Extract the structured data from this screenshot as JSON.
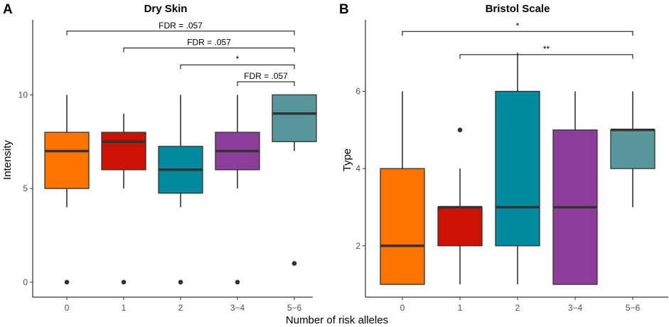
{
  "xlabel_shared": "Number of risk alleles",
  "chart_data": [
    {
      "type": "box",
      "panel": "A",
      "title": "Dry Skin",
      "xlabel": "",
      "ylabel": "Intensity",
      "ylim": [
        -0.8,
        14
      ],
      "yticks": [
        0,
        5,
        10
      ],
      "categories": [
        "0",
        "1",
        "2",
        "3−4",
        "5−6"
      ],
      "colors": [
        "#ff7300",
        "#cc1105",
        "#008a9f",
        "#8c3e9a",
        "#57969a"
      ],
      "boxes": [
        {
          "whisker_low": 4,
          "q1": 5,
          "median": 7,
          "q3": 8,
          "whisker_high": 10,
          "outliers": [
            0
          ]
        },
        {
          "whisker_low": 5,
          "q1": 6,
          "median": 7.5,
          "q3": 8,
          "whisker_high": 9,
          "outliers": [
            0
          ]
        },
        {
          "whisker_low": 4,
          "q1": 4.75,
          "median": 6,
          "q3": 7.25,
          "whisker_high": 10,
          "outliers": [
            0
          ]
        },
        {
          "whisker_low": 5,
          "q1": 6,
          "median": 7,
          "q3": 8,
          "whisker_high": 10,
          "outliers": [
            0
          ]
        },
        {
          "whisker_low": 7,
          "q1": 7.5,
          "median": 9,
          "q3": 10,
          "whisker_high": 10,
          "outliers": [
            1
          ]
        }
      ],
      "brackets": [
        {
          "from": 0,
          "to": 4,
          "y": 13.4,
          "label": "FDR = .057"
        },
        {
          "from": 1,
          "to": 4,
          "y": 12.5,
          "label": "FDR = .057"
        },
        {
          "from": 2,
          "to": 4,
          "y": 11.6,
          "label": "*"
        },
        {
          "from": 3,
          "to": 4,
          "y": 10.7,
          "label": "FDR = .057"
        }
      ]
    },
    {
      "type": "box",
      "panel": "B",
      "title": "Bristol Scale",
      "xlabel": "",
      "ylabel": "Type",
      "ylim": [
        0.67,
        7.85
      ],
      "yticks": [
        2,
        4,
        6
      ],
      "categories": [
        "0",
        "1",
        "2",
        "3−4",
        "5−6"
      ],
      "colors": [
        "#ff7300",
        "#cc1105",
        "#008a9f",
        "#8c3e9a",
        "#57969a"
      ],
      "boxes": [
        {
          "whisker_low": 1,
          "q1": 1,
          "median": 2,
          "q3": 4,
          "whisker_high": 6,
          "outliers": []
        },
        {
          "whisker_low": 1,
          "q1": 2,
          "median": 3,
          "q3": 3,
          "whisker_high": 4,
          "outliers": [
            5
          ]
        },
        {
          "whisker_low": 1,
          "q1": 2,
          "median": 3,
          "q3": 6,
          "whisker_high": 7,
          "outliers": []
        },
        {
          "whisker_low": 1,
          "q1": 1,
          "median": 3,
          "q3": 5,
          "whisker_high": 6,
          "outliers": []
        },
        {
          "whisker_low": 3,
          "q1": 4,
          "median": 5,
          "q3": 5,
          "whisker_high": 6,
          "outliers": []
        }
      ],
      "brackets": [
        {
          "from": 0,
          "to": 4,
          "y": 7.55,
          "label": "*"
        },
        {
          "from": 1,
          "to": 4,
          "y": 6.95,
          "label": "**"
        }
      ]
    }
  ]
}
